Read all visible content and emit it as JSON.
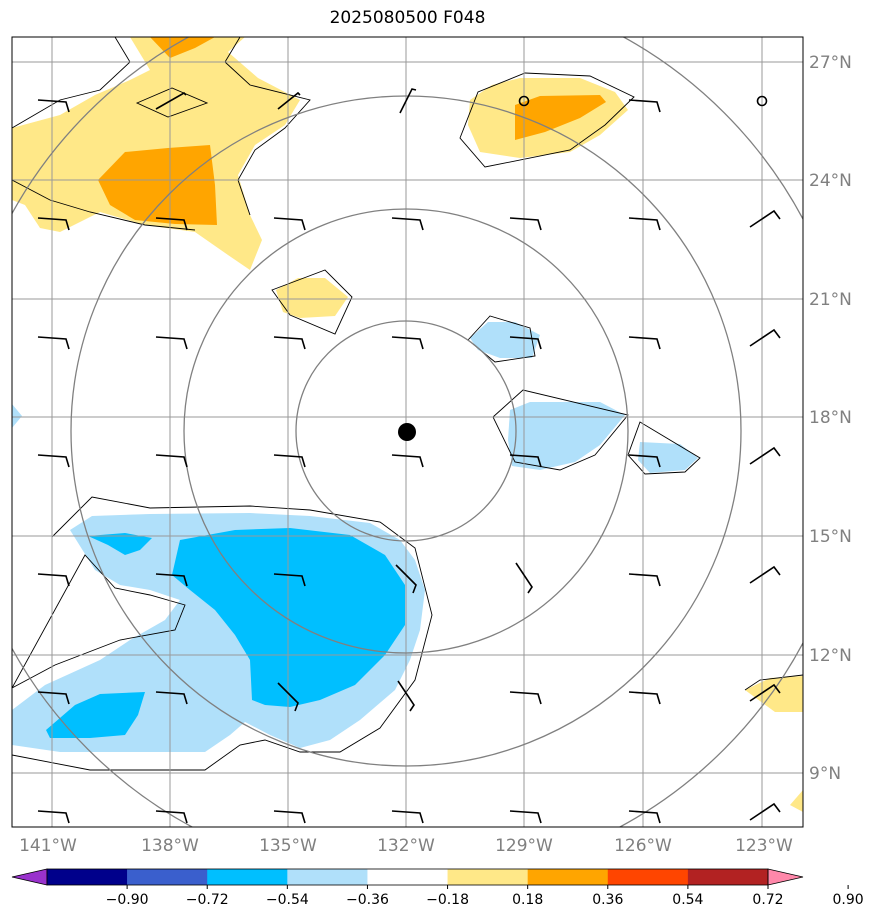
{
  "title": "2025080500 F048",
  "map": {
    "lat_labels": [
      "27°N",
      "24°N",
      "21°N",
      "18°N",
      "15°N",
      "12°N",
      "9°N"
    ],
    "lon_labels": [
      "141°W",
      "138°W",
      "135°W",
      "132°W",
      "129°W",
      "126°W",
      "123°W"
    ],
    "storm_center": {
      "lon": "132°W",
      "lat": "17.6°N"
    },
    "colors": {
      "gridline": "#999999",
      "range_ring": "#808080",
      "neg_light": "#b0e0fa",
      "neg_mid": "#00bfff",
      "pos_light": "#ffe888",
      "pos_mid": "#ffa500"
    }
  },
  "colorbar": {
    "ticks": [
      "−0.90",
      "−0.72",
      "−0.54",
      "−0.36",
      "−0.18",
      "0.18",
      "0.36",
      "0.54",
      "0.72",
      "0.90"
    ],
    "colors": [
      "#9932cc",
      "#00008b",
      "#3a5fcd",
      "#00bfff",
      "#b0e0fa",
      "#ffffff",
      "#ffe888",
      "#ffa500",
      "#ff4500",
      "#b22222",
      "#ff88aa"
    ]
  }
}
